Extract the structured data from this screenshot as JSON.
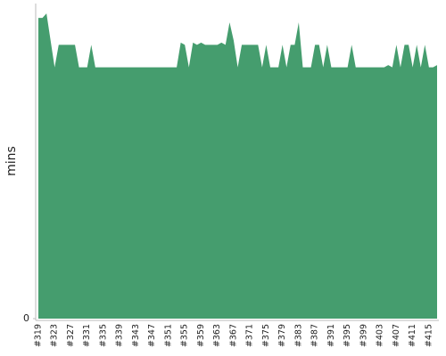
{
  "chart_data": {
    "type": "area",
    "y_label": "mins",
    "color": "#459d6e",
    "categories": [
      "#319",
      null,
      null,
      null,
      "#323",
      null,
      null,
      null,
      "#327",
      null,
      null,
      null,
      "#331",
      null,
      null,
      null,
      "#335",
      null,
      null,
      null,
      "#339",
      null,
      null,
      null,
      "#343",
      null,
      null,
      null,
      "#347",
      null,
      null,
      null,
      "#351",
      null,
      null,
      null,
      "#355",
      null,
      null,
      null,
      "#359",
      null,
      null,
      null,
      "#363",
      null,
      null,
      null,
      "#367",
      null,
      null,
      null,
      "#371",
      null,
      null,
      null,
      "#375",
      null,
      null,
      null,
      "#379",
      null,
      null,
      null,
      "#383",
      null,
      null,
      null,
      "#387",
      null,
      null,
      null,
      "#391",
      null,
      null,
      null,
      "#395",
      null,
      null,
      null,
      "#399",
      null,
      null,
      null,
      "#403",
      null,
      null,
      null,
      "#407",
      null,
      null,
      null,
      "#411",
      null,
      null,
      null,
      "#415",
      null,
      null
    ],
    "values": [
      13.4,
      13.4,
      13.6,
      12.4,
      11.2,
      12.2,
      12.2,
      12.2,
      12.2,
      12.2,
      11.2,
      11.2,
      11.2,
      12.2,
      11.2,
      11.2,
      11.2,
      11.2,
      11.2,
      11.2,
      11.2,
      11.2,
      11.2,
      11.2,
      11.2,
      11.2,
      11.2,
      11.2,
      11.2,
      11.2,
      11.2,
      11.2,
      11.2,
      11.2,
      11.2,
      12.3,
      12.2,
      11.2,
      12.3,
      12.2,
      12.3,
      12.2,
      12.2,
      12.2,
      12.2,
      12.3,
      12.2,
      13.2,
      12.4,
      11.2,
      12.2,
      12.2,
      12.2,
      12.2,
      12.2,
      11.2,
      12.2,
      11.2,
      11.2,
      11.2,
      12.2,
      11.2,
      12.2,
      12.2,
      13.2,
      11.2,
      11.2,
      11.2,
      12.2,
      12.2,
      11.2,
      12.2,
      11.2,
      11.2,
      11.2,
      11.2,
      11.2,
      12.2,
      11.2,
      11.2,
      11.2,
      11.2,
      11.2,
      11.2,
      11.2,
      11.2,
      11.3,
      11.2,
      12.2,
      11.2,
      12.2,
      12.2,
      11.2,
      12.2,
      11.2,
      12.2,
      11.2,
      11.2,
      11.3
    ],
    "ylim": [
      0,
      14
    ],
    "yticks": [
      0
    ]
  }
}
